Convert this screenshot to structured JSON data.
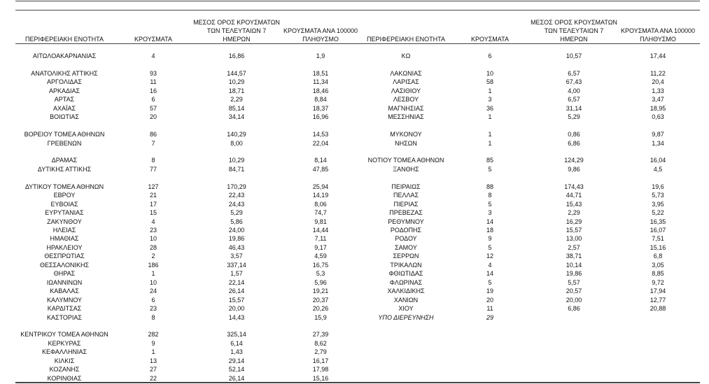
{
  "tables": [
    {
      "headers": [
        [
          "ΠΕΡΙΦΕΡΕΙΑΚΗ ΕΝΟΤΗΤΑ"
        ],
        [
          "ΚΡΟΥΣΜΑΤΑ"
        ],
        [
          "ΜΕΣΟΣ ΟΡΟΣ ΚΡΟΥΣΜΑΤΩΝ",
          "ΤΩΝ ΤΕΛΕΥΤΑΙΩΝ 7",
          "ΗΜΕΡΩΝ"
        ],
        [
          "ΚΡΟΥΣΜΑΤΑ ΑΝΑ 100000",
          "ΠΛΗΘΥΣΜΟ"
        ]
      ],
      "groups": [
        [
          [
            "ΑΙΤΩΛΟΑΚΑΡΝΑΝΙΑΣ",
            "4",
            "16,86",
            "1,9"
          ]
        ],
        [
          [
            "ΑΝΑΤΟΛΙΚΗΣ ΑΤΤΙΚΗΣ",
            "93",
            "144,57",
            "18,51"
          ],
          [
            "ΑΡΓΟΛΙΔΑΣ",
            "11",
            "10,29",
            "11,34"
          ],
          [
            "ΑΡΚΑΔΙΑΣ",
            "16",
            "18,71",
            "18,46"
          ],
          [
            "ΑΡΤΑΣ",
            "6",
            "2,29",
            "8,84"
          ],
          [
            "ΑΧΑΪΑΣ",
            "57",
            "85,14",
            "18,37"
          ],
          [
            "ΒΟΙΩΤΙΑΣ",
            "20",
            "34,14",
            "16,96"
          ]
        ],
        [
          [
            "ΒΟΡΕΙΟΥ ΤΟΜΕΑ ΑΘΗΝΩΝ",
            "86",
            "140,29",
            "14,53"
          ],
          [
            "ΓΡΕΒΕΝΩΝ",
            "7",
            "8,00",
            "22,04"
          ]
        ],
        [
          [
            "ΔΡΑΜΑΣ",
            "8",
            "10,29",
            "8,14"
          ],
          [
            "ΔΥΤΙΚΗΣ ΑΤΤΙΚΗΣ",
            "77",
            "84,71",
            "47,85"
          ]
        ],
        [
          [
            "ΔΥΤΙΚΟΥ ΤΟΜΕΑ ΑΘΗΝΩΝ",
            "127",
            "170,29",
            "25,94"
          ],
          [
            "ΕΒΡΟΥ",
            "21",
            "22,43",
            "14,19"
          ],
          [
            "ΕΥΒΟΙΑΣ",
            "17",
            "24,43",
            "8,06"
          ],
          [
            "ΕΥΡΥΤΑΝΙΑΣ",
            "15",
            "5,29",
            "74,7"
          ],
          [
            "ΖΑΚΥΝΘΟΥ",
            "4",
            "5,86",
            "9,81"
          ],
          [
            "ΗΛΕΙΑΣ",
            "23",
            "24,00",
            "14,44"
          ],
          [
            "ΗΜΑΘΙΑΣ",
            "10",
            "19,86",
            "7,11"
          ],
          [
            "ΗΡΑΚΛΕΙΟΥ",
            "28",
            "46,43",
            "9,17"
          ],
          [
            "ΘΕΣΠΡΩΤΙΑΣ",
            "2",
            "3,57",
            "4,59"
          ],
          [
            "ΘΕΣΣΑΛΟΝΙΚΗΣ",
            "186",
            "337,14",
            "16,75"
          ],
          [
            "ΘΗΡΑΣ",
            "1",
            "1,57",
            "5,3"
          ],
          [
            "ΙΩΑΝΝΙΝΩΝ",
            "10",
            "22,14",
            "5,96"
          ],
          [
            "ΚΑΒΑΛΑΣ",
            "24",
            "26,14",
            "19,21"
          ],
          [
            "ΚΑΛΥΜΝΟΥ",
            "6",
            "15,57",
            "20,37"
          ],
          [
            "ΚΑΡΔΙΤΣΑΣ",
            "23",
            "20,00",
            "20,26"
          ],
          [
            "ΚΑΣΤΟΡΙΑΣ",
            "8",
            "14,43",
            "15,9"
          ]
        ],
        [
          [
            "ΚΕΝΤΡΙΚΟΥ ΤΟΜΕΑ ΑΘΗΝΩΝ",
            "282",
            "325,14",
            "27,39"
          ],
          [
            "ΚΕΡΚΥΡΑΣ",
            "9",
            "6,14",
            "8,62"
          ],
          [
            "ΚΕΦΑΛΛΗΝΙΑΣ",
            "1",
            "1,43",
            "2,79"
          ],
          [
            "ΚΙΛΚΙΣ",
            "13",
            "29,14",
            "16,17"
          ],
          [
            "ΚΟΖΑΝΗΣ",
            "27",
            "52,14",
            "17,98"
          ],
          [
            "ΚΟΡΙΝΘΙΑΣ",
            "22",
            "26,14",
            "15,16"
          ]
        ]
      ]
    },
    {
      "headers": [
        [
          "ΠΕΡΙΦΕΡΕΙΑΚΗ ΕΝΟΤΗΤΑ"
        ],
        [
          "ΚΡΟΥΣΜΑΤΑ"
        ],
        [
          "ΜΕΣΟΣ ΟΡΟΣ ΚΡΟΥΣΜΑΤΩΝ",
          "ΤΩΝ ΤΕΛΕΥΤΑΙΩΝ 7",
          "ΗΜΕΡΩΝ"
        ],
        [
          "ΚΡΟΥΣΜΑΤΑ ΑΝΑ 100000",
          "ΠΛΗΘΥΣΜΟ"
        ]
      ],
      "groups": [
        [
          [
            "ΚΩ",
            "6",
            "10,57",
            "17,44"
          ]
        ],
        [
          [
            "ΛΑΚΩΝΙΑΣ",
            "10",
            "6,57",
            "11,22"
          ],
          [
            "ΛΑΡΙΣΑΣ",
            "58",
            "67,43",
            "20,4"
          ],
          [
            "ΛΑΣΙΘΙΟΥ",
            "1",
            "4,00",
            "1,33"
          ],
          [
            "ΛΕΣΒΟΥ",
            "3",
            "6,57",
            "3,47"
          ],
          [
            "ΜΑΓΝΗΣΙΑΣ",
            "36",
            "31,14",
            "18,95"
          ],
          [
            "ΜΕΣΣΗΝΙΑΣ",
            "1",
            "5,29",
            "0,63"
          ]
        ],
        [
          [
            "ΜΥΚΟΝΟΥ",
            "1",
            "0,86",
            "9,87"
          ],
          [
            "ΝΗΣΩΝ",
            "1",
            "6,86",
            "1,34"
          ]
        ],
        [
          [
            "ΝΟΤΙΟΥ ΤΟΜΕΑ ΑΘΗΝΩΝ",
            "85",
            "124,29",
            "16,04"
          ],
          [
            "ΞΑΝΘΗΣ",
            "5",
            "9,86",
            "4,5"
          ]
        ],
        [
          [
            "ΠΕΙΡΑΙΩΣ",
            "88",
            "174,43",
            "19,6"
          ],
          [
            "ΠΕΛΛΑΣ",
            "8",
            "44,71",
            "5,73"
          ],
          [
            "ΠΙΕΡΙΑΣ",
            "5",
            "15,43",
            "3,95"
          ],
          [
            "ΠΡΕΒΕΖΑΣ",
            "3",
            "2,29",
            "5,22"
          ],
          [
            "ΡΕΘΥΜΝΟΥ",
            "14",
            "16,29",
            "16,35"
          ],
          [
            "ΡΟΔΟΠΗΣ",
            "18",
            "15,57",
            "16,07"
          ],
          [
            "ΡΟΔΟΥ",
            "9",
            "13,00",
            "7,51"
          ],
          [
            "ΣΑΜΟΥ",
            "5",
            "2,57",
            "15,16"
          ],
          [
            "ΣΕΡΡΩΝ",
            "12",
            "38,71",
            "6,8"
          ],
          [
            "ΤΡΙΚΑΛΩΝ",
            "4",
            "10,14",
            "3,05"
          ],
          [
            "ΦΘΙΩΤΙΔΑΣ",
            "14",
            "19,86",
            "8,85"
          ],
          [
            "ΦΛΩΡΙΝΑΣ",
            "5",
            "5,57",
            "9,72"
          ],
          [
            "ΧΑΛΚΙΔΙΚΗΣ",
            "19",
            "20,57",
            "17,94"
          ],
          [
            "ΧΑΝΙΩΝ",
            "20",
            "20,00",
            "12,77"
          ],
          [
            "ΧΙΟΥ",
            "11",
            "6,86",
            "20,88"
          ],
          [
            "ΥΠΟ ΔΙΕΡΕΥΝΗΣΗ",
            "29"
          ]
        ]
      ]
    }
  ]
}
